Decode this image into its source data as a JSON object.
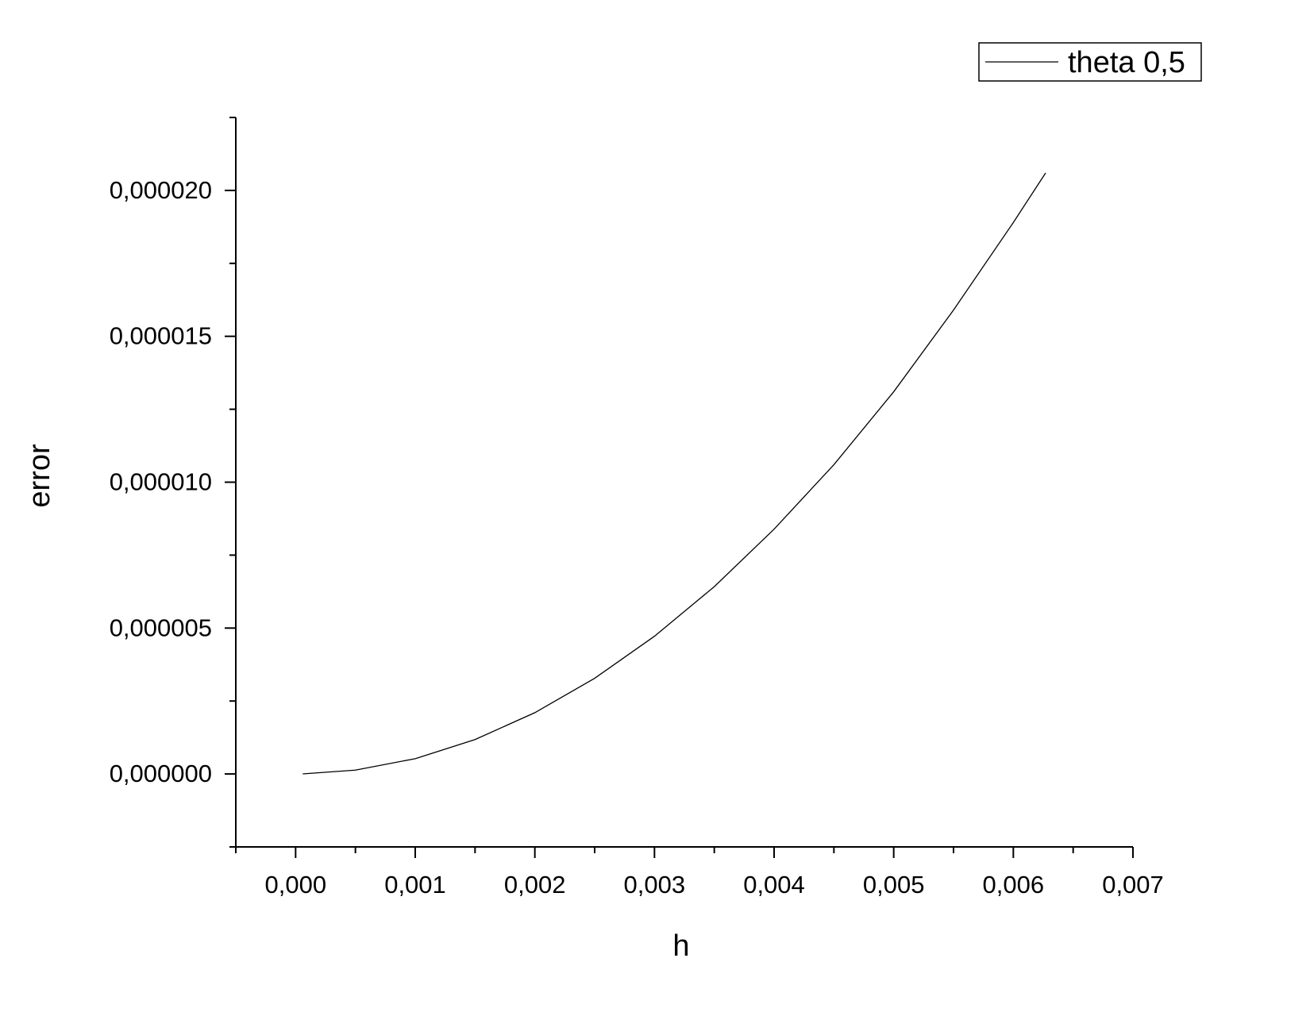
{
  "chart_data": {
    "type": "line",
    "xlabel": "h",
    "ylabel": "error",
    "xlim": [
      -0.0005,
      0.007
    ],
    "ylim": [
      -2.5e-06,
      2.25e-05
    ],
    "x_ticks": [
      {
        "value": 0.0,
        "label": "0,000"
      },
      {
        "value": 0.001,
        "label": "0,001"
      },
      {
        "value": 0.002,
        "label": "0,002"
      },
      {
        "value": 0.003,
        "label": "0,003"
      },
      {
        "value": 0.004,
        "label": "0,004"
      },
      {
        "value": 0.005,
        "label": "0,005"
      },
      {
        "value": 0.006,
        "label": "0,006"
      },
      {
        "value": 0.007,
        "label": "0,007"
      }
    ],
    "x_minor_ticks": [
      -0.0005,
      0.0005,
      0.0015,
      0.0025,
      0.0035,
      0.0045,
      0.0055,
      0.0065
    ],
    "y_ticks": [
      {
        "value": 0.0,
        "label": "0,000000"
      },
      {
        "value": 5e-06,
        "label": "0,000005"
      },
      {
        "value": 1e-05,
        "label": "0,000010"
      },
      {
        "value": 1.5e-05,
        "label": "0,000015"
      },
      {
        "value": 2e-05,
        "label": "0,000020"
      }
    ],
    "y_minor_ticks": [
      -2.5e-06,
      2.5e-06,
      7.5e-06,
      1.25e-05,
      1.75e-05,
      2.25e-05
    ],
    "grid": false,
    "legend_position": "top-right",
    "series": [
      {
        "name": "theta 0,5",
        "color": "#000000",
        "x": [
          6e-05,
          0.0005,
          0.001,
          0.0015,
          0.002,
          0.0025,
          0.003,
          0.0035,
          0.004,
          0.0045,
          0.005,
          0.0055,
          0.006,
          0.00627
        ],
        "y": [
          1.9e-09,
          1.31e-07,
          5.24e-07,
          1.18e-06,
          2.1e-06,
          3.28e-06,
          4.72e-06,
          6.42e-06,
          8.39e-06,
          1.06e-05,
          1.31e-05,
          1.59e-05,
          1.89e-05,
          2.06e-05
        ]
      }
    ]
  }
}
